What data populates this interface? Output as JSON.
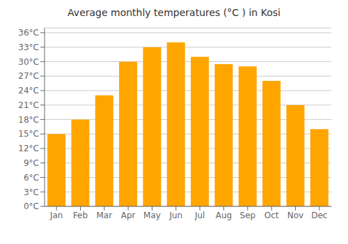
{
  "chart_data": {
    "type": "bar",
    "title": "Average monthly temperatures (°C ) in Kosi",
    "categories": [
      "Jan",
      "Feb",
      "Mar",
      "Apr",
      "May",
      "Jun",
      "Jul",
      "Aug",
      "Sep",
      "Oct",
      "Nov",
      "Dec"
    ],
    "values": [
      15,
      18,
      23,
      30,
      33,
      34,
      31,
      29.5,
      29,
      26,
      21,
      16
    ],
    "color": "#FFA500",
    "ylim": [
      0,
      37
    ],
    "yticks": [
      {
        "value": 0,
        "label": "0°C"
      },
      {
        "value": 3,
        "label": "3°C"
      },
      {
        "value": 6,
        "label": "6°C"
      },
      {
        "value": 9,
        "label": "9°C"
      },
      {
        "value": 12,
        "label": "12°C"
      },
      {
        "value": 15,
        "label": "15°C"
      },
      {
        "value": 18,
        "label": "18°C"
      },
      {
        "value": 21,
        "label": "21°C"
      },
      {
        "value": 24,
        "label": "24°C"
      },
      {
        "value": 27,
        "label": "27°C"
      },
      {
        "value": 30,
        "label": "30°C"
      },
      {
        "value": 33,
        "label": "33°C"
      },
      {
        "value": 36,
        "label": "36°C"
      }
    ],
    "grid": true
  }
}
